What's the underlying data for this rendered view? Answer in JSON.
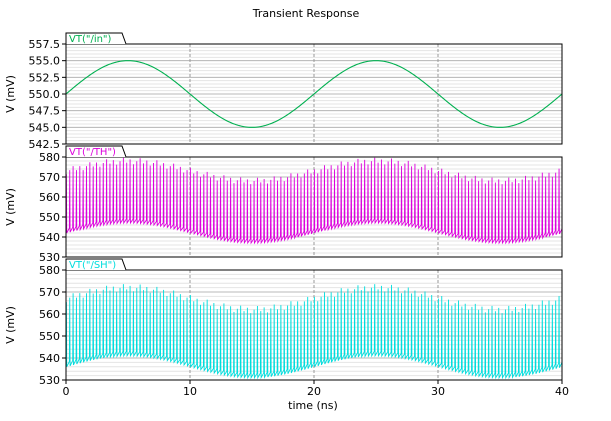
{
  "chart_data": {
    "type": "line",
    "title": "Transient Response",
    "xlabel": "time (ns)",
    "x_range": [
      0,
      40
    ],
    "x_ticks": [
      "0",
      "10",
      "20",
      "30",
      "40"
    ],
    "grid": true,
    "panels": [
      {
        "series_name": "VT(\"/in\")",
        "ylabel": "V (mV)",
        "color": "#00b050",
        "ylim": [
          542.5,
          557.5
        ],
        "y_ticks": [
          "557.5",
          "555.0",
          "552.5",
          "550.0",
          "547.5",
          "545.0",
          "542.5"
        ],
        "y_tick_values": [
          557.5,
          555.0,
          552.5,
          550.0,
          547.5,
          545.0,
          542.5
        ],
        "signal": {
          "kind": "sine",
          "center": 550,
          "amplitude": 5,
          "period_ns": 20,
          "phase_peak_ns": 5
        }
      },
      {
        "series_name": "VT(\"/TH\")",
        "ylabel": "V (mV)",
        "color": "#dd00dd",
        "ylim": [
          530,
          580
        ],
        "y_ticks": [
          "580",
          "570",
          "560",
          "550",
          "540",
          "530"
        ],
        "y_tick_values": [
          580,
          570,
          560,
          550,
          540,
          530
        ],
        "signal": {
          "kind": "sampled",
          "low_center": 544,
          "low_amplitude": 5,
          "high_center": 573,
          "high_amplitude": 5,
          "period_ns": 20,
          "phase_peak_ns": 5,
          "spike_count": 148
        }
      },
      {
        "series_name": "VT(\"/SH\")",
        "ylabel": "V (mV)",
        "color": "#00dddd",
        "ylim": [
          530,
          580
        ],
        "y_ticks": [
          "580",
          "570",
          "560",
          "550",
          "540",
          "530"
        ],
        "y_tick_values": [
          580,
          570,
          560,
          550,
          540,
          530
        ],
        "signal": {
          "kind": "sampled",
          "low_center": 538,
          "low_amplitude": 5,
          "high_center": 567,
          "high_amplitude": 5,
          "period_ns": 20,
          "phase_peak_ns": 5,
          "spike_count": 148
        }
      }
    ]
  }
}
